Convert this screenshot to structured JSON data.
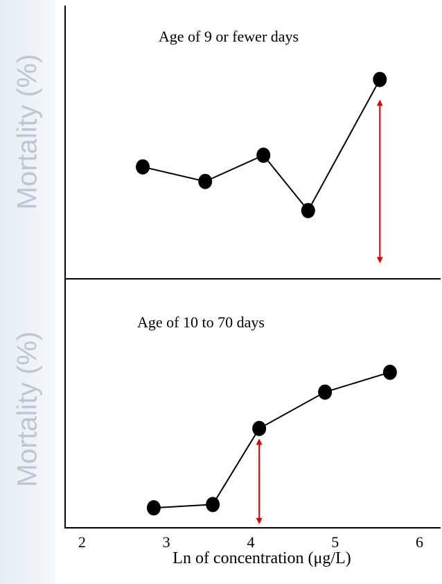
{
  "chart_data": [
    {
      "type": "line",
      "title": "Age of 9 or fewer days",
      "ylabel": "Mortality (%)",
      "x": [
        2.72,
        3.46,
        4.15,
        4.68,
        5.53
      ],
      "y": [
        18.5,
        16.0,
        20.5,
        11.0,
        33.5
      ],
      "ylim": [
        0,
        40
      ],
      "arrow": {
        "x": 5.53,
        "y_from": 2.5,
        "y_to": 29.5,
        "color": "#e00000"
      }
    },
    {
      "type": "line",
      "title": "Age of 10 to 70 days",
      "ylabel": "Mortality (%)",
      "x": [
        2.85,
        3.55,
        4.1,
        4.88,
        5.65
      ],
      "y": [
        2.5,
        3.0,
        14.5,
        20.0,
        23.0
      ],
      "ylim": [
        0,
        30
      ],
      "arrow": {
        "x": 4.1,
        "y_from": 0.5,
        "y_to": 12.5,
        "color": "#e00000"
      }
    }
  ],
  "x_axis": {
    "label": "Ln of concentration (μg/L)",
    "ticks": [
      "2",
      "3",
      "4",
      "5",
      "6"
    ],
    "xlim": [
      1.8,
      6.25
    ]
  }
}
